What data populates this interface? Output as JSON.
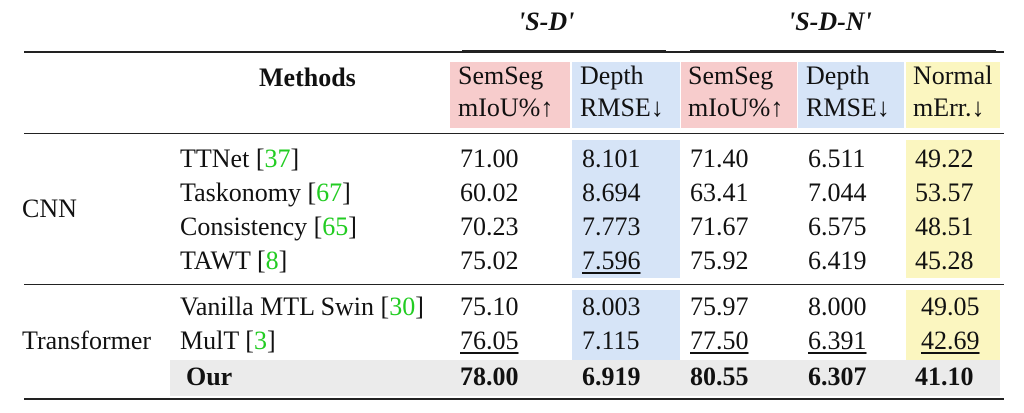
{
  "groups": {
    "sd": "'S-D'",
    "sdn": "'S-D-N'"
  },
  "header": {
    "methods": "Methods",
    "cols": [
      {
        "l1": "SemSeg",
        "l2": "mIoU%↑"
      },
      {
        "l1": "Depth",
        "l2": "RMSE↓"
      },
      {
        "l1": "SemSeg",
        "l2": "mIoU%↑"
      },
      {
        "l1": "Depth",
        "l2": "RMSE↓"
      },
      {
        "l1": "Normal",
        "l2": "mErr.↓"
      }
    ]
  },
  "categories": {
    "cnn": "CNN",
    "transformer": "Transformer"
  },
  "rows": [
    {
      "name": "TTNet",
      "cite": "37",
      "v": [
        "71.00",
        "8.101",
        "71.40",
        "6.511",
        "49.22"
      ]
    },
    {
      "name": "Taskonomy",
      "cite": "67",
      "v": [
        "60.02",
        "8.694",
        "63.41",
        "7.044",
        "53.57"
      ]
    },
    {
      "name": "Consistency",
      "cite": "65",
      "v": [
        "70.23",
        "7.773",
        "71.67",
        "6.575",
        "48.51"
      ]
    },
    {
      "name": "TAWT",
      "cite": "8",
      "v": [
        "75.02",
        "7.596",
        "75.92",
        "6.419",
        "45.28"
      ]
    },
    {
      "name": "Vanilla MTL Swin",
      "cite": "30",
      "v": [
        "75.10",
        "8.003",
        "75.97",
        "8.000",
        "49.05"
      ]
    },
    {
      "name": "MulT",
      "cite": "3",
      "v": [
        "76.05",
        "7.115",
        "77.50",
        "6.391",
        "42.69"
      ]
    },
    {
      "name": "Our",
      "v": [
        "78.00",
        "6.919",
        "80.55",
        "6.307",
        "41.10"
      ]
    }
  ]
}
